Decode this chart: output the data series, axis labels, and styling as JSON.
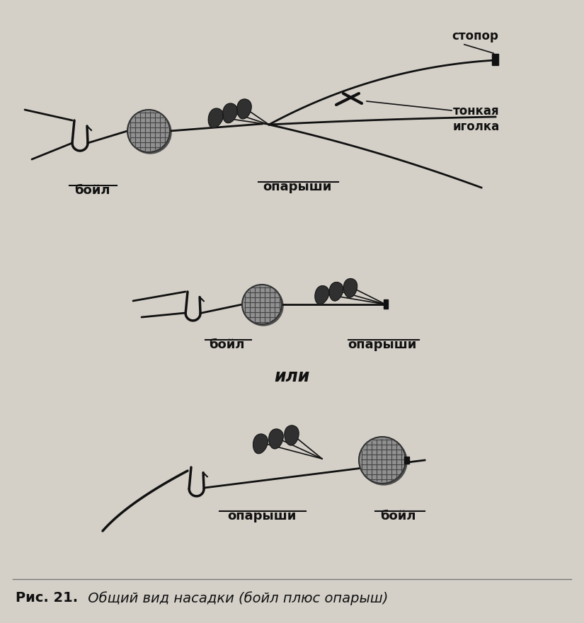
{
  "bg_color": "#d4d0c8",
  "line_color": "#111111",
  "dark_fill": "#2a2a2a",
  "boyle_fill": "#909090",
  "boyle_outline": "#444444",
  "maggot_fill": "#303030",
  "caption_bold": "Рис. 21.",
  "caption_italic": " Общий вид насадки (бойл плюс опарыш)",
  "label_stopor": "стопор",
  "label_thin_needle": "тонкая\nиголка",
  "label_boyl1": "бойл",
  "label_oparishi1": "опарыши",
  "label_boyl2": "бойл",
  "label_oparishi2": "опарыши",
  "label_ili": "или",
  "label_boyl3": "бойл",
  "label_oparishi3": "опарыши",
  "fig_width": 8.25,
  "fig_height": 8.8,
  "dpi": 100
}
